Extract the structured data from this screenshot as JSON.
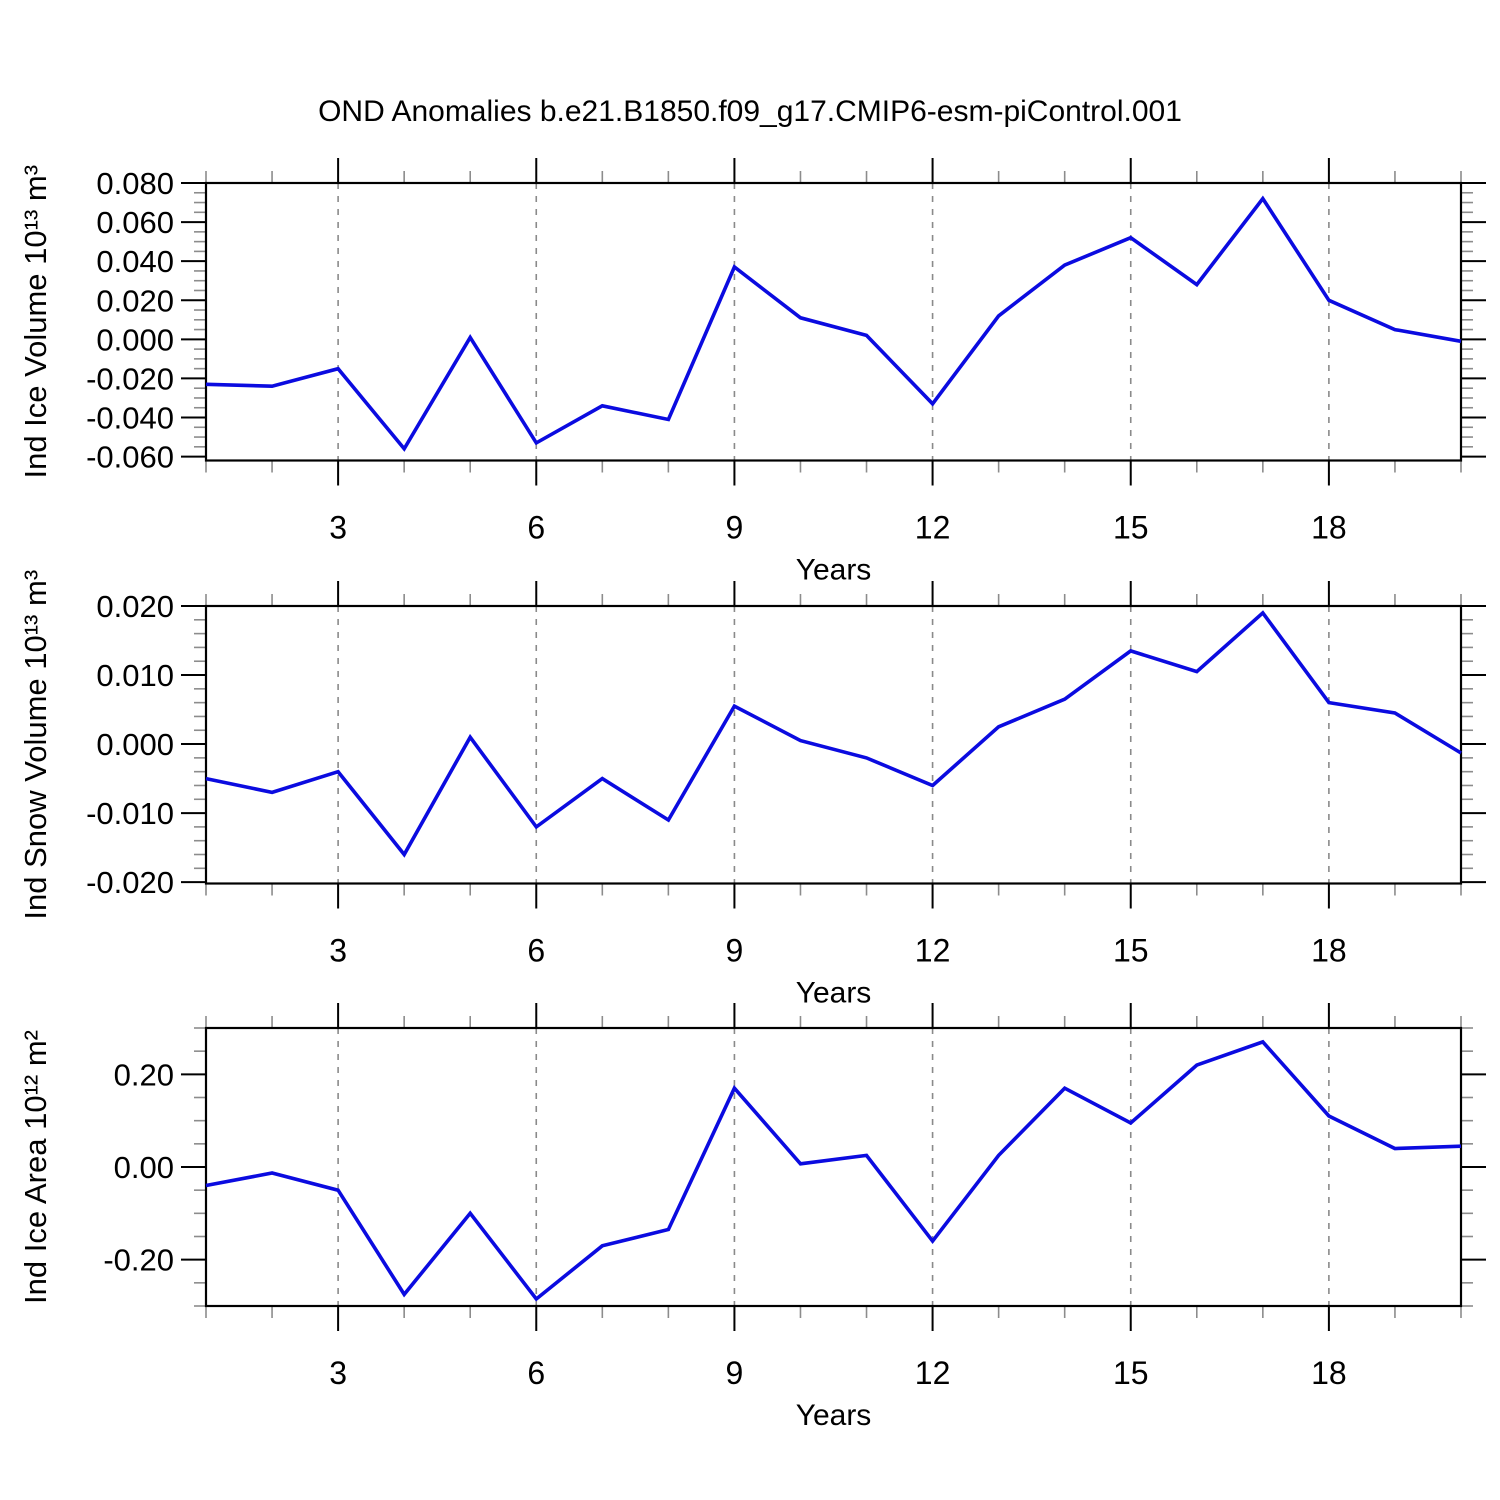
{
  "title": "OND Anomalies b.e21.B1850.f09_g17.CMIP6-esm-piControl.001",
  "colors": {
    "series_line": "#0b0be0",
    "gridline": "#8a8a8a",
    "axis": "#000000",
    "minor_tick": "#8c8c8c",
    "background": "#ffffff"
  },
  "chart_data": [
    {
      "type": "line",
      "name": "ind-ice-volume",
      "ylabel": "Ind Ice Volume 10¹³ m³",
      "xlabel": "Years",
      "x": [
        1,
        2,
        3,
        4,
        5,
        6,
        7,
        8,
        9,
        10,
        11,
        12,
        13,
        14,
        15,
        16,
        17,
        18,
        19,
        20
      ],
      "values": [
        -0.023,
        -0.024,
        -0.015,
        -0.056,
        0.001,
        -0.053,
        -0.034,
        -0.041,
        0.037,
        0.011,
        0.002,
        -0.033,
        0.012,
        0.038,
        0.052,
        0.028,
        0.072,
        0.02,
        0.005,
        -0.001
      ],
      "xlim": [
        1,
        20
      ],
      "ylim": [
        -0.062,
        0.08
      ],
      "xtick_values": [
        3,
        6,
        9,
        12,
        15,
        18
      ],
      "xtick_labels": [
        "3",
        "6",
        "9",
        "12",
        "15",
        "18"
      ],
      "xminor_step": 1,
      "ytick_values": [
        0.08,
        0.06,
        0.04,
        0.02,
        0.0,
        -0.02,
        -0.04,
        -0.06
      ],
      "ytick_labels": [
        "0.080",
        "0.060",
        "0.040",
        "0.020",
        "0.000",
        "-0.020",
        "-0.040",
        "-0.060"
      ],
      "yminor_step": 0.005,
      "grid": "vertical-dashed-at-major-x",
      "legend": "none"
    },
    {
      "type": "line",
      "name": "ind-snow-volume",
      "ylabel": "Ind Snow Volume 10¹³ m³",
      "xlabel": "Years",
      "x": [
        1,
        2,
        3,
        4,
        5,
        6,
        7,
        8,
        9,
        10,
        11,
        12,
        13,
        14,
        15,
        16,
        17,
        18,
        19,
        20
      ],
      "values": [
        -0.005,
        -0.007,
        -0.004,
        -0.016,
        0.001,
        -0.012,
        -0.005,
        -0.011,
        0.0055,
        0.0005,
        -0.002,
        -0.006,
        0.0025,
        0.0065,
        0.0135,
        0.0105,
        0.019,
        0.006,
        0.0045,
        -0.0013
      ],
      "xlim": [
        1,
        20
      ],
      "ylim": [
        -0.0202,
        0.02
      ],
      "xtick_values": [
        3,
        6,
        9,
        12,
        15,
        18
      ],
      "xtick_labels": [
        "3",
        "6",
        "9",
        "12",
        "15",
        "18"
      ],
      "xminor_step": 1,
      "ytick_values": [
        0.02,
        0.01,
        0.0,
        -0.01,
        -0.02
      ],
      "ytick_labels": [
        "0.020",
        "0.010",
        "0.000",
        "-0.010",
        "-0.020"
      ],
      "yminor_step": 0.002,
      "grid": "vertical-dashed-at-major-x",
      "legend": "none"
    },
    {
      "type": "line",
      "name": "ind-ice-area",
      "ylabel": "Ind Ice Area 10¹² m²",
      "xlabel": "Years",
      "x": [
        1,
        2,
        3,
        4,
        5,
        6,
        7,
        8,
        9,
        10,
        11,
        12,
        13,
        14,
        15,
        16,
        17,
        18,
        19,
        20
      ],
      "values": [
        -0.04,
        -0.013,
        -0.05,
        -0.275,
        -0.1,
        -0.285,
        -0.17,
        -0.135,
        0.17,
        0.007,
        0.025,
        -0.16,
        0.025,
        0.17,
        0.095,
        0.22,
        0.27,
        0.11,
        0.04,
        0.045
      ],
      "xlim": [
        1,
        20
      ],
      "ylim": [
        -0.3,
        0.3
      ],
      "xtick_values": [
        3,
        6,
        9,
        12,
        15,
        18
      ],
      "xtick_labels": [
        "3",
        "6",
        "9",
        "12",
        "15",
        "18"
      ],
      "xminor_step": 1,
      "ytick_values": [
        0.2,
        0.0,
        -0.2
      ],
      "ytick_labels": [
        "0.20",
        "0.00",
        "-0.20"
      ],
      "yminor_step": 0.05,
      "grid": "vertical-dashed-at-major-x",
      "legend": "none"
    }
  ]
}
